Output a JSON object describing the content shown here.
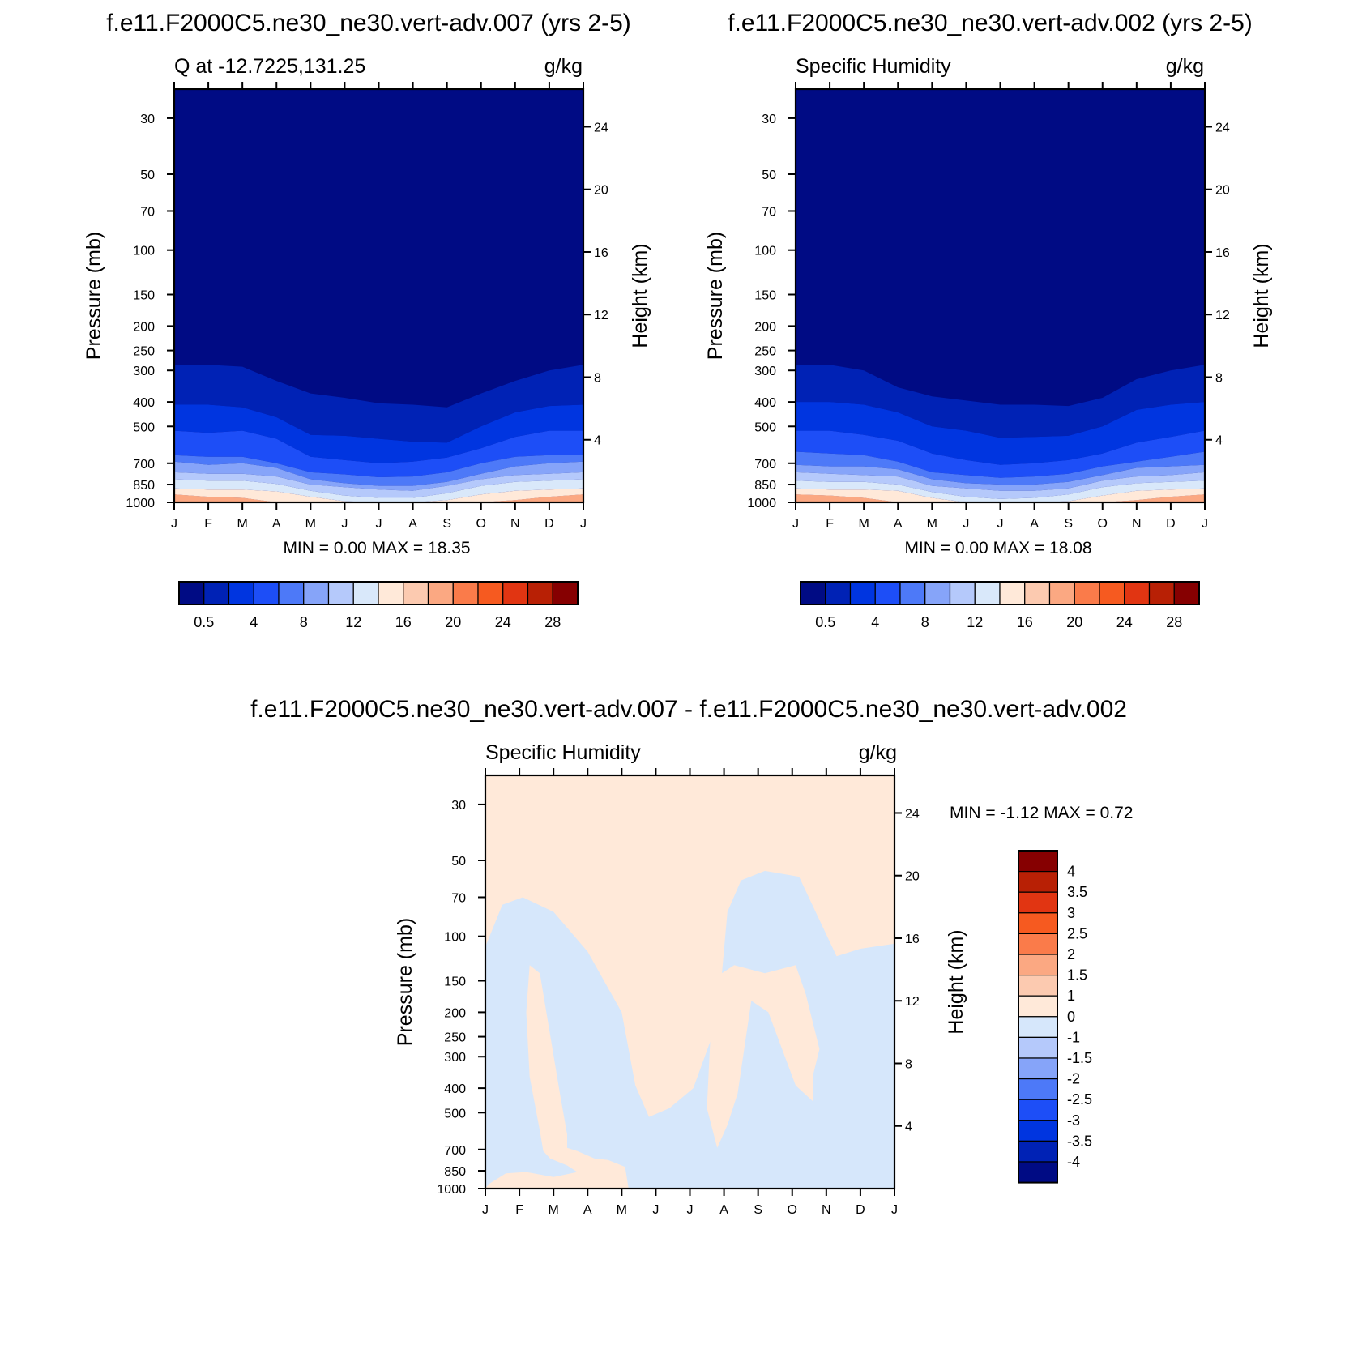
{
  "colors": {
    "levels14": [
      "#000b84",
      "#0022b5",
      "#0035e0",
      "#1d4ef7",
      "#4d79f8",
      "#86a4f9",
      "#b5c9fb",
      "#d9e8fa",
      "#ffe9d9",
      "#fccab0",
      "#fba882",
      "#fa7b4a",
      "#f65a20",
      "#e13512",
      "#b82005",
      "#860001"
    ],
    "diff": [
      "#000b84",
      "#0022b5",
      "#0035e0",
      "#1d4ef7",
      "#4d79f8",
      "#86a4f9",
      "#b5c9fb",
      "#d6e7fb",
      "#ffe9d9",
      "#fccab0",
      "#fba882",
      "#fa7b4a",
      "#f65a20",
      "#e13512",
      "#b82005",
      "#860001"
    ]
  },
  "chart_data": [
    {
      "type": "heatmap",
      "title": "f.e11.F2000C5.ne30_ne30.vert-adv.007 (yrs 2-5)",
      "subtitle_left": "Q at -12.7225,131.25",
      "subtitle_right": "g/kg",
      "xlabel": "",
      "ylabel": "Pressure (mb)",
      "ylabel_right": "Height (km)",
      "x_tick_labels": [
        "J",
        "F",
        "M",
        "A",
        "M",
        "J",
        "J",
        "A",
        "S",
        "O",
        "N",
        "D",
        "J"
      ],
      "y_tick_labels": [
        "30",
        "50",
        "70",
        "100",
        "150",
        "200",
        "250",
        "300",
        "400",
        "500",
        "700",
        "850",
        "1000"
      ],
      "y_ticks": [
        30,
        50,
        70,
        100,
        150,
        200,
        250,
        300,
        400,
        500,
        700,
        850,
        1000
      ],
      "y_right_tick_labels": [
        "24",
        "20",
        "16",
        "12",
        "8",
        "4"
      ],
      "y_right_ticks": [
        24,
        20,
        16,
        12,
        8,
        4
      ],
      "ylim": [
        1000,
        23
      ],
      "y_scale": "log",
      "min_max_text": "MIN =   0.00 MAX =  18.35",
      "levels": [
        0.5,
        2,
        4,
        6,
        8,
        10,
        12,
        14,
        16,
        18,
        20,
        22,
        24,
        26,
        28
      ],
      "colorbar_labels": [
        "0.5",
        "4",
        "8",
        "12",
        "16",
        "20",
        "24",
        "28"
      ],
      "colorbar_label_values": [
        0.5,
        4,
        8,
        12,
        16,
        20,
        24,
        28
      ],
      "contours": [
        {
          "level": 0.5,
          "pressure": [
            285,
            285,
            290,
            330,
            370,
            385,
            405,
            410,
            420,
            370,
            330,
            300,
            285
          ]
        },
        {
          "level": 2,
          "pressure": [
            410,
            410,
            420,
            460,
            540,
            545,
            560,
            575,
            580,
            500,
            440,
            415,
            410
          ]
        },
        {
          "level": 4,
          "pressure": [
            520,
            530,
            520,
            560,
            660,
            680,
            700,
            690,
            665,
            610,
            550,
            520,
            520
          ]
        },
        {
          "level": 6,
          "pressure": [
            650,
            660,
            660,
            700,
            760,
            775,
            795,
            790,
            760,
            700,
            660,
            650,
            650
          ]
        },
        {
          "level": 8,
          "pressure": [
            690,
            710,
            700,
            730,
            810,
            840,
            860,
            860,
            830,
            770,
            720,
            700,
            690
          ]
        },
        {
          "level": 10,
          "pressure": [
            760,
            770,
            770,
            790,
            850,
            870,
            890,
            900,
            860,
            810,
            780,
            770,
            760
          ]
        },
        {
          "level": 12,
          "pressure": [
            810,
            820,
            820,
            845,
            900,
            940,
            960,
            960,
            920,
            860,
            830,
            820,
            810
          ]
        },
        {
          "level": 14,
          "pressure": [
            880,
            890,
            890,
            905,
            950,
            990,
            1000,
            1000,
            980,
            930,
            900,
            890,
            880
          ]
        },
        {
          "level": 16,
          "pressure": [
            930,
            950,
            960,
            1000,
            1000,
            1000,
            1000,
            1000,
            1000,
            1000,
            980,
            950,
            930
          ]
        }
      ]
    },
    {
      "type": "heatmap",
      "title": "f.e11.F2000C5.ne30_ne30.vert-adv.002 (yrs 2-5)",
      "subtitle_left": "Specific Humidity",
      "subtitle_right": "g/kg",
      "xlabel": "",
      "ylabel": "Pressure (mb)",
      "ylabel_right": "Height (km)",
      "x_tick_labels": [
        "J",
        "F",
        "M",
        "A",
        "M",
        "J",
        "J",
        "A",
        "S",
        "O",
        "N",
        "D",
        "J"
      ],
      "y_tick_labels": [
        "30",
        "50",
        "70",
        "100",
        "150",
        "200",
        "250",
        "300",
        "400",
        "500",
        "700",
        "850",
        "1000"
      ],
      "y_ticks": [
        30,
        50,
        70,
        100,
        150,
        200,
        250,
        300,
        400,
        500,
        700,
        850,
        1000
      ],
      "y_right_tick_labels": [
        "24",
        "20",
        "16",
        "12",
        "8",
        "4"
      ],
      "y_right_ticks": [
        24,
        20,
        16,
        12,
        8,
        4
      ],
      "ylim": [
        1000,
        23
      ],
      "y_scale": "log",
      "min_max_text": "MIN =   0.00 MAX =  18.08",
      "levels": [
        0.5,
        2,
        4,
        6,
        8,
        10,
        12,
        14,
        16,
        18,
        20,
        22,
        24,
        26,
        28
      ],
      "colorbar_labels": [
        "0.5",
        "4",
        "8",
        "12",
        "16",
        "20",
        "24",
        "28"
      ],
      "colorbar_label_values": [
        0.5,
        4,
        8,
        12,
        16,
        20,
        24,
        28
      ],
      "contours": [
        {
          "level": 0.5,
          "pressure": [
            285,
            285,
            300,
            350,
            380,
            395,
            410,
            410,
            415,
            385,
            325,
            300,
            285
          ]
        },
        {
          "level": 2,
          "pressure": [
            400,
            400,
            410,
            440,
            500,
            520,
            555,
            550,
            545,
            500,
            430,
            410,
            400
          ]
        },
        {
          "level": 4,
          "pressure": [
            520,
            520,
            540,
            570,
            640,
            680,
            710,
            700,
            680,
            640,
            580,
            550,
            520
          ]
        },
        {
          "level": 6,
          "pressure": [
            630,
            640,
            650,
            690,
            760,
            780,
            800,
            790,
            770,
            720,
            690,
            660,
            630
          ]
        },
        {
          "level": 8,
          "pressure": [
            710,
            720,
            720,
            740,
            810,
            840,
            850,
            850,
            830,
            780,
            730,
            720,
            710
          ]
        },
        {
          "level": 10,
          "pressure": [
            760,
            770,
            780,
            790,
            860,
            880,
            900,
            900,
            880,
            820,
            790,
            780,
            760
          ]
        },
        {
          "level": 12,
          "pressure": [
            820,
            830,
            830,
            850,
            910,
            950,
            970,
            960,
            930,
            870,
            840,
            830,
            820
          ]
        },
        {
          "level": 14,
          "pressure": [
            880,
            890,
            890,
            900,
            960,
            1000,
            1000,
            1000,
            990,
            940,
            900,
            890,
            880
          ]
        },
        {
          "level": 16,
          "pressure": [
            930,
            940,
            960,
            1000,
            1000,
            1000,
            1000,
            1000,
            1000,
            1000,
            980,
            950,
            930
          ]
        }
      ]
    },
    {
      "type": "heatmap",
      "title": "f.e11.F2000C5.ne30_ne30.vert-adv.007 - f.e11.F2000C5.ne30_ne30.vert-adv.002",
      "subtitle_left": "Specific Humidity",
      "subtitle_right": "g/kg",
      "xlabel": "",
      "ylabel": "Pressure (mb)",
      "ylabel_right": "Height (km)",
      "x_tick_labels": [
        "J",
        "F",
        "M",
        "A",
        "M",
        "J",
        "J",
        "A",
        "S",
        "O",
        "N",
        "D",
        "J"
      ],
      "y_tick_labels": [
        "30",
        "50",
        "70",
        "100",
        "150",
        "200",
        "250",
        "300",
        "400",
        "500",
        "700",
        "850",
        "1000"
      ],
      "y_ticks": [
        30,
        50,
        70,
        100,
        150,
        200,
        250,
        300,
        400,
        500,
        700,
        850,
        1000
      ],
      "y_right_tick_labels": [
        "24",
        "20",
        "16",
        "12",
        "8",
        "4"
      ],
      "y_right_ticks": [
        24,
        20,
        16,
        12,
        8,
        4
      ],
      "ylim": [
        1000,
        23
      ],
      "y_scale": "log",
      "min_max_text": "MIN =  -1.12 MAX =   0.72",
      "levels": [
        -4,
        -3.5,
        -3,
        -2.5,
        -2,
        -1.5,
        -1,
        0,
        1,
        1.5,
        2,
        2.5,
        3,
        3.5,
        4
      ],
      "colorbar_labels": [
        "4",
        "3.5",
        "3",
        "2.5",
        "2",
        "1.5",
        "1",
        "0",
        "-1",
        "-1.5",
        "-2",
        "-2.5",
        "-3",
        "-3.5",
        "-4"
      ],
      "background_value_range": [
        0,
        1
      ],
      "negative_region_value_range": [
        -1,
        0
      ],
      "negative_regions": [
        [
          [
            0,
            110
          ],
          [
            0.5,
            75
          ],
          [
            1.1,
            70
          ],
          [
            2.0,
            80
          ],
          [
            3.0,
            115
          ],
          [
            4.0,
            200
          ],
          [
            4.4,
            390
          ],
          [
            4.8,
            520
          ],
          [
            5.4,
            480
          ],
          [
            6.1,
            400
          ],
          [
            6.6,
            260
          ],
          [
            6.9,
            160
          ],
          [
            7.1,
            80
          ],
          [
            7.5,
            60
          ],
          [
            8.2,
            55
          ],
          [
            9.2,
            58
          ],
          [
            10.3,
            120
          ],
          [
            11.0,
            112
          ],
          [
            12,
            107
          ],
          [
            12,
            745
          ],
          [
            11.7,
            760
          ],
          [
            11.0,
            670
          ],
          [
            10.3,
            450
          ],
          [
            10.6,
            360
          ],
          [
            11.6,
            340
          ],
          [
            12,
            360
          ],
          [
            12,
            1000
          ],
          [
            4.2,
            1000
          ],
          [
            4.1,
            820
          ],
          [
            3.6,
            770
          ],
          [
            3.2,
            760
          ],
          [
            2.7,
            710
          ],
          [
            2.4,
            690
          ],
          [
            2.4,
            610
          ],
          [
            2.2,
            430
          ],
          [
            1.6,
            140
          ],
          [
            1.3,
            130
          ],
          [
            1.2,
            200
          ],
          [
            1.3,
            360
          ],
          [
            1.6,
            590
          ],
          [
            1.7,
            710
          ],
          [
            1.9,
            760
          ],
          [
            2.4,
            810
          ],
          [
            2.7,
            860
          ],
          [
            2.0,
            900
          ],
          [
            1.2,
            860
          ],
          [
            0.6,
            870
          ],
          [
            0.1,
            960
          ],
          [
            0,
            1000
          ]
        ],
        [
          [
            6.6,
            150
          ],
          [
            7.3,
            130
          ],
          [
            8.2,
            140
          ],
          [
            9.1,
            130
          ],
          [
            9.4,
            170
          ],
          [
            9.8,
            280
          ],
          [
            9.6,
            360
          ],
          [
            9.6,
            450
          ],
          [
            9.1,
            390
          ],
          [
            8.3,
            200
          ],
          [
            7.8,
            180
          ],
          [
            7.4,
            420
          ],
          [
            7.1,
            560
          ],
          [
            6.8,
            690
          ],
          [
            6.5,
            480
          ],
          [
            6.6,
            250
          ]
        ]
      ]
    }
  ]
}
